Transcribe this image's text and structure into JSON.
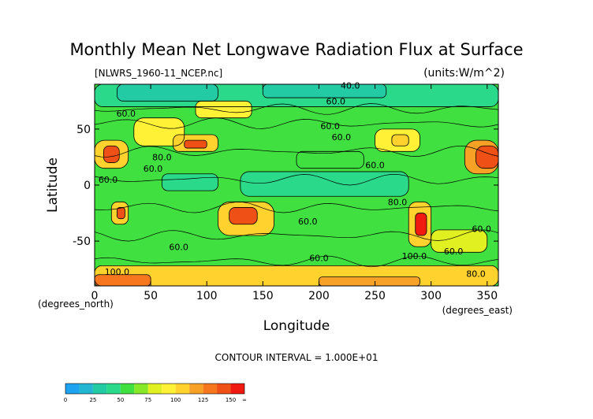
{
  "chart_data": {
    "type": "heatmap",
    "title": "Monthly Mean Net Longwave Radiation Flux at Surface",
    "subtitle_left": "[NLWRS_1960-11_NCEP.nc]",
    "subtitle_right": "(units:W/m^2)",
    "xlabel": "Longitude",
    "ylabel": "Latitude",
    "x_unit_note": "(degrees_east)",
    "y_unit_note": "(degrees_north)",
    "xlim": [
      0,
      360
    ],
    "ylim": [
      -90,
      90
    ],
    "x_ticks": [
      0,
      50,
      100,
      150,
      200,
      250,
      300,
      350
    ],
    "y_ticks": [
      50,
      0,
      -50
    ],
    "contour_interval_label": "CONTOUR INTERVAL = 1.000E+01",
    "contour_labels": [
      "40.0",
      "60.0",
      "60.0",
      "60.0",
      "60.0",
      "60.0",
      "60.0",
      "60.0",
      "60.0",
      "60.0",
      "80.0",
      "80.0",
      "60.0",
      "100.0",
      "100.0",
      "80.0",
      "60.0",
      "60.0"
    ],
    "colorbar": {
      "tick_labels": [
        "0",
        "25",
        "50",
        "75",
        "100",
        "125",
        "150",
        "∞"
      ],
      "bins": [
        {
          "from": 0,
          "to": 12.5,
          "color": "#1ea3f0"
        },
        {
          "from": 12.5,
          "to": 25,
          "color": "#22b6d2"
        },
        {
          "from": 25,
          "to": 37.5,
          "color": "#22cba4"
        },
        {
          "from": 37.5,
          "to": 50,
          "color": "#2ad98a"
        },
        {
          "from": 50,
          "to": 62.5,
          "color": "#3fe040"
        },
        {
          "from": 62.5,
          "to": 75,
          "color": "#86e828"
        },
        {
          "from": 75,
          "to": 87.5,
          "color": "#e0f020"
        },
        {
          "from": 87.5,
          "to": 100,
          "color": "#fff236"
        },
        {
          "from": 100,
          "to": 112.5,
          "color": "#ffd22e"
        },
        {
          "from": 112.5,
          "to": 125,
          "color": "#f7a226"
        },
        {
          "from": 125,
          "to": 137.5,
          "color": "#f7771e"
        },
        {
          "from": 137.5,
          "to": 150,
          "color": "#ee5016"
        },
        {
          "from": 150,
          "to": 175,
          "color": "#f01a10"
        }
      ]
    },
    "regions": [
      {
        "lon": [
          0,
          360
        ],
        "lat": [
          -90,
          90
        ],
        "value": 55
      },
      {
        "lon": [
          0,
          360
        ],
        "lat": [
          70,
          90
        ],
        "value": 40
      },
      {
        "lon": [
          20,
          110
        ],
        "lat": [
          75,
          90
        ],
        "value": 25
      },
      {
        "lon": [
          150,
          260
        ],
        "lat": [
          78,
          90
        ],
        "value": 30
      },
      {
        "lon": [
          0,
          360
        ],
        "lat": [
          -90,
          -72
        ],
        "value": 100
      },
      {
        "lon": [
          0,
          50
        ],
        "lat": [
          -90,
          -80
        ],
        "value": 130
      },
      {
        "lon": [
          200,
          290
        ],
        "lat": [
          -90,
          -82
        ],
        "value": 120
      },
      {
        "lon": [
          0,
          30
        ],
        "lat": [
          15,
          40
        ],
        "value": 110
      },
      {
        "lon": [
          8,
          22
        ],
        "lat": [
          20,
          35
        ],
        "value": 140
      },
      {
        "lon": [
          35,
          80
        ],
        "lat": [
          35,
          60
        ],
        "value": 90
      },
      {
        "lon": [
          70,
          110
        ],
        "lat": [
          30,
          45
        ],
        "value": 105
      },
      {
        "lon": [
          80,
          100
        ],
        "lat": [
          33,
          40
        ],
        "value": 145
      },
      {
        "lon": [
          250,
          290
        ],
        "lat": [
          30,
          50
        ],
        "value": 95
      },
      {
        "lon": [
          265,
          280
        ],
        "lat": [
          35,
          45
        ],
        "value": 110
      },
      {
        "lon": [
          330,
          360
        ],
        "lat": [
          10,
          40
        ],
        "value": 120
      },
      {
        "lon": [
          340,
          360
        ],
        "lat": [
          15,
          35
        ],
        "value": 140
      },
      {
        "lon": [
          110,
          160
        ],
        "lat": [
          -45,
          -15
        ],
        "value": 105
      },
      {
        "lon": [
          120,
          145
        ],
        "lat": [
          -35,
          -20
        ],
        "value": 145
      },
      {
        "lon": [
          280,
          300
        ],
        "lat": [
          -55,
          -15
        ],
        "value": 100
      },
      {
        "lon": [
          286,
          296
        ],
        "lat": [
          -45,
          -25
        ],
        "value": 150
      },
      {
        "lon": [
          15,
          30
        ],
        "lat": [
          -35,
          -15
        ],
        "value": 110
      },
      {
        "lon": [
          20,
          27
        ],
        "lat": [
          -30,
          -20
        ],
        "value": 140
      },
      {
        "lon": [
          130,
          280
        ],
        "lat": [
          -10,
          12
        ],
        "value": 40
      },
      {
        "lon": [
          60,
          110
        ],
        "lat": [
          -5,
          10
        ],
        "value": 45
      },
      {
        "lon": [
          180,
          240
        ],
        "lat": [
          15,
          30
        ],
        "value": 60
      },
      {
        "lon": [
          90,
          140
        ],
        "lat": [
          60,
          75
        ],
        "value": 90
      },
      {
        "lon": [
          300,
          350
        ],
        "lat": [
          -60,
          -40
        ],
        "value": 75
      }
    ]
  }
}
